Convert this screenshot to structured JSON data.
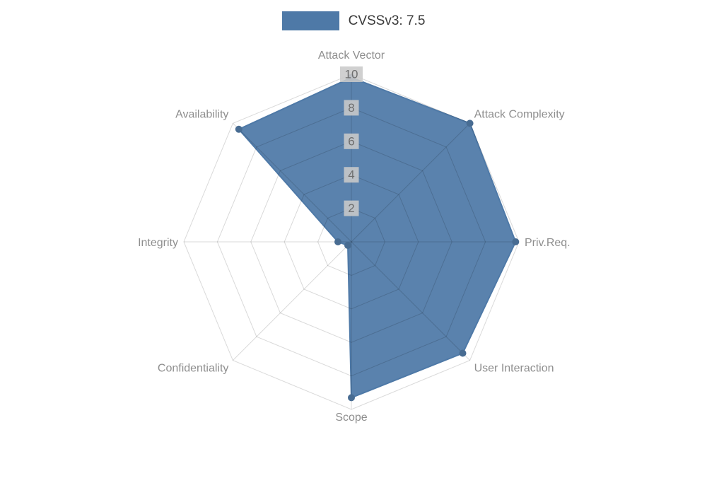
{
  "legend": {
    "label": "CVSSv3: 7.5",
    "swatch_color": "#4e79a7"
  },
  "chart_data": {
    "type": "radar",
    "title": "",
    "categories": [
      "Attack Vector",
      "Attack Complexity",
      "Priv.Req.",
      "User Interaction",
      "Scope",
      "Confidentiality",
      "Integrity",
      "Availability"
    ],
    "series": [
      {
        "name": "CVSSv3: 7.5",
        "values": [
          9.8,
          10,
          9.8,
          9.4,
          9.3,
          0.3,
          0.8,
          9.5
        ]
      }
    ],
    "ticks": [
      2,
      4,
      6,
      8,
      10
    ],
    "rlim": [
      0,
      10
    ],
    "grid": true,
    "legend_position": "top",
    "colors": {
      "fill": "#4e79a7",
      "point": "#486c92",
      "grid_line": "rgba(0,0,0,0.15)",
      "axis_label": "#8e8e8e",
      "tick_text": "#6e6e6e",
      "tick_backdrop": "rgba(201,201,201,0.88)"
    }
  }
}
